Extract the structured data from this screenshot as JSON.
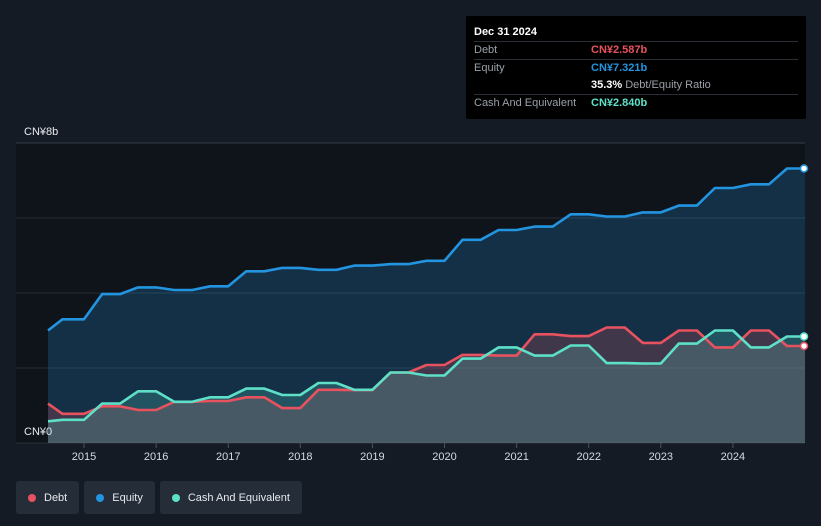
{
  "chart_data": {
    "type": "area",
    "y_unit_label_top": "CN¥8b",
    "y_unit_label_bottom": "CN¥0",
    "ylim": [
      0,
      8
    ],
    "xlim": [
      2014.5,
      2025.0
    ],
    "x_ticks": [
      2015,
      2016,
      2017,
      2018,
      2019,
      2020,
      2021,
      2022,
      2023,
      2024
    ],
    "x_tick_labels": [
      "2015",
      "2016",
      "2017",
      "2018",
      "2019",
      "2020",
      "2021",
      "2022",
      "2023",
      "2024"
    ],
    "grid": true,
    "series": [
      {
        "name": "Debt",
        "color": "#e8525f",
        "points": [
          [
            2014.5,
            1.05
          ],
          [
            2014.7,
            0.78
          ],
          [
            2015.0,
            0.78
          ],
          [
            2015.25,
            0.98
          ],
          [
            2015.5,
            0.98
          ],
          [
            2015.75,
            0.88
          ],
          [
            2016.0,
            0.88
          ],
          [
            2016.25,
            1.1
          ],
          [
            2016.5,
            1.1
          ],
          [
            2016.75,
            1.12
          ],
          [
            2017.0,
            1.12
          ],
          [
            2017.25,
            1.22
          ],
          [
            2017.5,
            1.22
          ],
          [
            2017.75,
            0.93
          ],
          [
            2018.0,
            0.93
          ],
          [
            2018.25,
            1.42
          ],
          [
            2018.5,
            1.42
          ],
          [
            2018.75,
            1.41
          ],
          [
            2019.0,
            1.41
          ],
          [
            2019.25,
            1.88
          ],
          [
            2019.5,
            1.88
          ],
          [
            2019.75,
            2.08
          ],
          [
            2020.0,
            2.08
          ],
          [
            2020.25,
            2.35
          ],
          [
            2020.5,
            2.35
          ],
          [
            2020.75,
            2.33
          ],
          [
            2021.0,
            2.33
          ],
          [
            2021.25,
            2.9
          ],
          [
            2021.5,
            2.9
          ],
          [
            2021.75,
            2.85
          ],
          [
            2022.0,
            2.85
          ],
          [
            2022.25,
            3.08
          ],
          [
            2022.5,
            3.08
          ],
          [
            2022.75,
            2.67
          ],
          [
            2023.0,
            2.67
          ],
          [
            2023.25,
            3.0
          ],
          [
            2023.5,
            3.0
          ],
          [
            2023.75,
            2.55
          ],
          [
            2024.0,
            2.55
          ],
          [
            2024.25,
            3.0
          ],
          [
            2024.5,
            3.0
          ],
          [
            2024.75,
            2.587
          ],
          [
            2025.0,
            2.587
          ]
        ]
      },
      {
        "name": "Equity",
        "color": "#2394df",
        "points": [
          [
            2014.5,
            3.0
          ],
          [
            2014.7,
            3.3
          ],
          [
            2015.0,
            3.3
          ],
          [
            2015.25,
            3.97
          ],
          [
            2015.5,
            3.97
          ],
          [
            2015.75,
            4.15
          ],
          [
            2016.0,
            4.15
          ],
          [
            2016.25,
            4.08
          ],
          [
            2016.5,
            4.08
          ],
          [
            2016.75,
            4.18
          ],
          [
            2017.0,
            4.18
          ],
          [
            2017.25,
            4.58
          ],
          [
            2017.5,
            4.58
          ],
          [
            2017.75,
            4.67
          ],
          [
            2018.0,
            4.67
          ],
          [
            2018.25,
            4.62
          ],
          [
            2018.5,
            4.62
          ],
          [
            2018.75,
            4.73
          ],
          [
            2019.0,
            4.73
          ],
          [
            2019.25,
            4.77
          ],
          [
            2019.5,
            4.77
          ],
          [
            2019.75,
            4.86
          ],
          [
            2020.0,
            4.86
          ],
          [
            2020.25,
            5.42
          ],
          [
            2020.5,
            5.42
          ],
          [
            2020.75,
            5.68
          ],
          [
            2021.0,
            5.68
          ],
          [
            2021.25,
            5.77
          ],
          [
            2021.5,
            5.77
          ],
          [
            2021.75,
            6.1
          ],
          [
            2022.0,
            6.1
          ],
          [
            2022.25,
            6.04
          ],
          [
            2022.5,
            6.04
          ],
          [
            2022.75,
            6.15
          ],
          [
            2023.0,
            6.15
          ],
          [
            2023.25,
            6.33
          ],
          [
            2023.5,
            6.33
          ],
          [
            2023.75,
            6.8
          ],
          [
            2024.0,
            6.8
          ],
          [
            2024.25,
            6.9
          ],
          [
            2024.5,
            6.9
          ],
          [
            2024.75,
            7.321
          ],
          [
            2025.0,
            7.321
          ]
        ]
      },
      {
        "name": "Cash And Equivalent",
        "color": "#5ee0c8",
        "points": [
          [
            2014.5,
            0.58
          ],
          [
            2014.7,
            0.62
          ],
          [
            2015.0,
            0.62
          ],
          [
            2015.25,
            1.05
          ],
          [
            2015.5,
            1.05
          ],
          [
            2015.75,
            1.38
          ],
          [
            2016.0,
            1.38
          ],
          [
            2016.25,
            1.1
          ],
          [
            2016.5,
            1.1
          ],
          [
            2016.75,
            1.22
          ],
          [
            2017.0,
            1.22
          ],
          [
            2017.25,
            1.45
          ],
          [
            2017.5,
            1.45
          ],
          [
            2017.75,
            1.28
          ],
          [
            2018.0,
            1.28
          ],
          [
            2018.25,
            1.6
          ],
          [
            2018.5,
            1.6
          ],
          [
            2018.75,
            1.42
          ],
          [
            2019.0,
            1.42
          ],
          [
            2019.25,
            1.88
          ],
          [
            2019.5,
            1.88
          ],
          [
            2019.75,
            1.8
          ],
          [
            2020.0,
            1.8
          ],
          [
            2020.25,
            2.25
          ],
          [
            2020.5,
            2.25
          ],
          [
            2020.75,
            2.55
          ],
          [
            2021.0,
            2.55
          ],
          [
            2021.25,
            2.33
          ],
          [
            2021.5,
            2.33
          ],
          [
            2021.75,
            2.6
          ],
          [
            2022.0,
            2.6
          ],
          [
            2022.25,
            2.13
          ],
          [
            2022.5,
            2.13
          ],
          [
            2022.75,
            2.12
          ],
          [
            2023.0,
            2.12
          ],
          [
            2023.25,
            2.65
          ],
          [
            2023.5,
            2.65
          ],
          [
            2023.75,
            3.0
          ],
          [
            2024.0,
            3.0
          ],
          [
            2024.25,
            2.55
          ],
          [
            2024.5,
            2.55
          ],
          [
            2024.75,
            2.84
          ],
          [
            2025.0,
            2.84
          ]
        ]
      }
    ]
  },
  "tooltip": {
    "date": "Dec 31 2024",
    "debt_label": "Debt",
    "debt_value": "CN¥2.587b",
    "equity_label": "Equity",
    "equity_value": "CN¥7.321b",
    "ratio_value": "35.3%",
    "ratio_label": "Debt/Equity Ratio",
    "cash_label": "Cash And Equivalent",
    "cash_value": "CN¥2.840b"
  },
  "legend": [
    {
      "label": "Debt",
      "color": "#e8525f"
    },
    {
      "label": "Equity",
      "color": "#2394df"
    },
    {
      "label": "Cash And Equivalent",
      "color": "#5ee0c8"
    }
  ],
  "colors": {
    "background": "#151b24",
    "plot_background": "#0f141b",
    "debt": "#e8525f",
    "equity": "#2394df",
    "cash": "#5ee0c8"
  }
}
